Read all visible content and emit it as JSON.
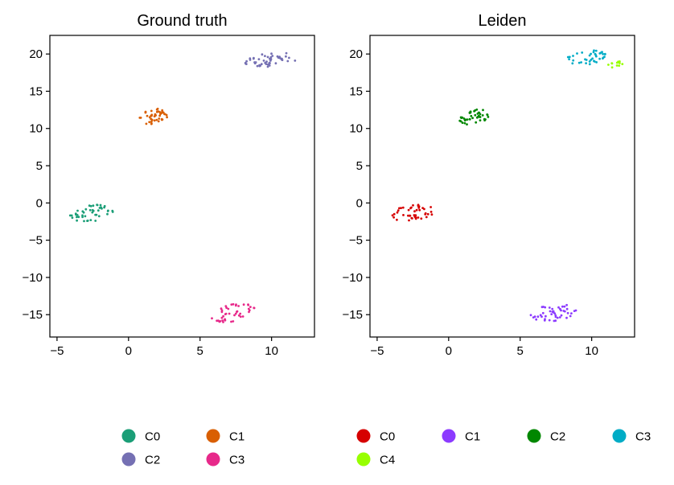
{
  "chart_data": [
    {
      "type": "scatter",
      "title": "Ground truth",
      "xlabel": "",
      "ylabel": "",
      "xlim": [
        -5.5,
        13
      ],
      "ylim": [
        -18,
        22.5
      ],
      "xticks": [
        -5,
        0,
        5,
        10
      ],
      "yticks": [
        -15,
        -10,
        -5,
        0,
        5,
        10,
        15,
        20
      ],
      "xtick_labels": [
        "−5",
        "0",
        "5",
        "10"
      ],
      "ytick_labels": [
        "−15",
        "−10",
        "−5",
        "0",
        "5",
        "10",
        "15",
        "20"
      ],
      "grid": false,
      "legend_position": "bottom",
      "series": [
        {
          "name": "C0",
          "color": "#1b9e77",
          "cluster": {
            "center": [
              -2.6,
              -1.4
            ],
            "spread": [
              1.6,
              1.1
            ],
            "count": 45
          }
        },
        {
          "name": "C1",
          "color": "#d95f02",
          "cluster": {
            "center": [
              1.8,
              11.6
            ],
            "spread": [
              1.1,
              1.0
            ],
            "count": 45
          }
        },
        {
          "name": "C2",
          "color": "#7570b3",
          "cluster": {
            "center": [
              10.0,
              19.3
            ],
            "spread": [
              1.9,
              1.0
            ],
            "count": 50
          }
        },
        {
          "name": "C3",
          "color": "#e7298a",
          "cluster": {
            "center": [
              7.3,
              -14.8
            ],
            "spread": [
              1.6,
              1.2
            ],
            "count": 45
          }
        }
      ]
    },
    {
      "type": "scatter",
      "title": "Leiden",
      "xlabel": "",
      "ylabel": "",
      "xlim": [
        -5.5,
        13
      ],
      "ylim": [
        -18,
        22.5
      ],
      "xticks": [
        -5,
        0,
        5,
        10
      ],
      "yticks": [
        -15,
        -10,
        -5,
        0,
        5,
        10,
        15,
        20
      ],
      "xtick_labels": [
        "−5",
        "0",
        "5",
        "10"
      ],
      "ytick_labels": [
        "−15",
        "−10",
        "−5",
        "0",
        "5",
        "10",
        "15",
        "20"
      ],
      "grid": false,
      "legend_position": "bottom",
      "series": [
        {
          "name": "C0",
          "color": "#d60000",
          "cluster": {
            "center": [
              -2.6,
              -1.4
            ],
            "spread": [
              1.6,
              1.1
            ],
            "count": 45
          }
        },
        {
          "name": "C1",
          "color": "#8c3bff",
          "cluster": {
            "center": [
              7.3,
              -14.8
            ],
            "spread": [
              1.6,
              1.2
            ],
            "count": 45
          }
        },
        {
          "name": "C2",
          "color": "#018700",
          "cluster": {
            "center": [
              1.8,
              11.6
            ],
            "spread": [
              1.1,
              1.0
            ],
            "count": 45
          }
        },
        {
          "name": "C3",
          "color": "#00acc6",
          "cluster": {
            "center": [
              9.6,
              19.5
            ],
            "spread": [
              1.4,
              1.0
            ],
            "count": 38
          }
        },
        {
          "name": "C4",
          "color": "#97ff00",
          "cluster": {
            "center": [
              11.6,
              18.6
            ],
            "spread": [
              0.6,
              0.4
            ],
            "count": 12
          }
        }
      ]
    }
  ]
}
